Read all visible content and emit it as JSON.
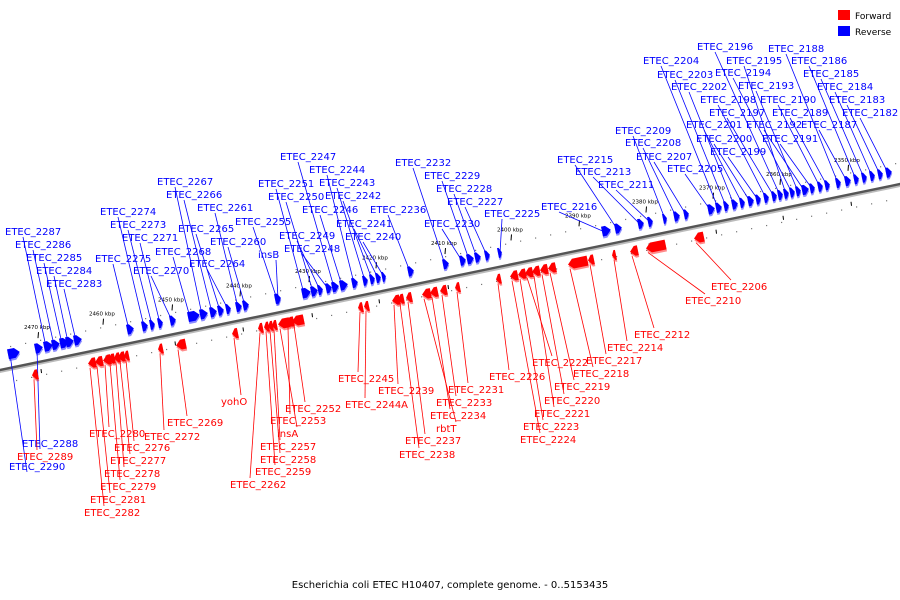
{
  "caption": "Escherichia coli ETEC H10407, complete genome. - 0..5153435",
  "legend": [
    {
      "label": "Forward",
      "color": "#ff0000"
    },
    {
      "label": "Reverse",
      "color": "#0000ff"
    }
  ],
  "axis": {
    "unit": "kbp",
    "ticks": [
      "2470 kbp",
      "2460 kbp",
      "2450 kbp",
      "2440 kbp",
      "2430 kbp",
      "2420 kbp",
      "2410 kbp",
      "2400 kbp",
      "2390 kbp",
      "2380 kbp",
      "2370 kbp",
      "2360 kbp",
      "2350 kbp"
    ]
  },
  "reverse_genes": [
    "ETEC_2290",
    "ETEC_2288",
    "ETEC_2287",
    "ETEC_2286",
    "ETEC_2285",
    "ETEC_2284",
    "ETEC_2283",
    "ETEC_2275",
    "ETEC_2274",
    "ETEC_2273",
    "ETEC_2271",
    "ETEC_2270",
    "ETEC_2268",
    "ETEC_2267",
    "ETEC_2266",
    "ETEC_2265",
    "ETEC_2264",
    "ETEC_2261",
    "ETEC_2260",
    "ETEC_2255",
    "insB",
    "ETEC_2251",
    "ETEC_2250",
    "ETEC_2249",
    "ETEC_2248",
    "ETEC_2247",
    "ETEC_2246",
    "ETEC_2244",
    "ETEC_2243",
    "ETEC_2242",
    "ETEC_2241",
    "ETEC_2240",
    "ETEC_2236",
    "ETEC_2232",
    "ETEC_2230",
    "ETEC_2229",
    "ETEC_2228",
    "ETEC_2227",
    "ETEC_2225",
    "ETEC_2216",
    "ETEC_2215",
    "ETEC_2213",
    "ETEC_2211",
    "ETEC_2209",
    "ETEC_2208",
    "ETEC_2207",
    "ETEC_2205",
    "ETEC_2204",
    "ETEC_2203",
    "ETEC_2202",
    "ETEC_2201",
    "ETEC_2200",
    "ETEC_2199",
    "ETEC_2198",
    "ETEC_2197",
    "ETEC_2196",
    "ETEC_2195",
    "ETEC_2194",
    "ETEC_2193",
    "ETEC_2192",
    "ETEC_2191",
    "ETEC_2190",
    "ETEC_2189",
    "ETEC_2188",
    "ETEC_2187",
    "ETEC_2186",
    "ETEC_2185",
    "ETEC_2184",
    "ETEC_2183",
    "ETEC_2182"
  ],
  "forward_genes": [
    "ETEC_2289",
    "ETEC_2282",
    "ETEC_2281",
    "ETEC_2280",
    "ETEC_2279",
    "ETEC_2278",
    "ETEC_2277",
    "ETEC_2276",
    "ETEC_2272",
    "ETEC_2269",
    "yohO",
    "ETEC_2262",
    "ETEC_2259",
    "ETEC_2258",
    "ETEC_2257",
    "insA",
    "ETEC_2253",
    "ETEC_2252",
    "ETEC_2245",
    "ETEC_2244A",
    "ETEC_2239",
    "ETEC_2238",
    "ETEC_2237",
    "rbtT",
    "ETEC_2234",
    "ETEC_2233",
    "ETEC_2231",
    "ETEC_2226",
    "ETEC_2224",
    "ETEC_2223",
    "ETEC_2222",
    "ETEC_2221",
    "ETEC_2220",
    "ETEC_2219",
    "ETEC_2218",
    "ETEC_2217",
    "ETEC_2214",
    "ETEC_2212",
    "ETEC_2210",
    "ETEC_2206"
  ]
}
